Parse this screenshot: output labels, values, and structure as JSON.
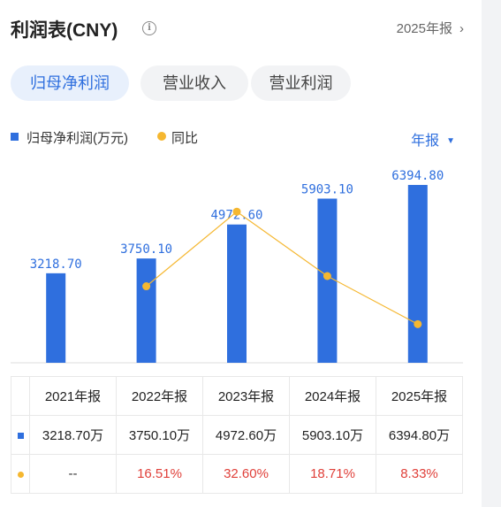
{
  "header": {
    "title": "利润表(CNY)",
    "info_glyph": "i",
    "period": "2025年报",
    "period_chevron": "›"
  },
  "tabs": [
    {
      "label": "归母净利润",
      "active": true
    },
    {
      "label": "营业收入",
      "active": false
    },
    {
      "label": "营业利润",
      "active": false
    }
  ],
  "legend": {
    "bar_label": "归母净利润(万元)",
    "line_label": "同比"
  },
  "period_select": {
    "label": "年报",
    "arrow": "▼"
  },
  "colors": {
    "bar": "#2f6fde",
    "line": "#f5b730",
    "positive": "#e0403a"
  },
  "chart_data": {
    "type": "bar",
    "categories": [
      "2021年报",
      "2022年报",
      "2023年报",
      "2024年报",
      "2025年报"
    ],
    "series": [
      {
        "name": "归母净利润(万元)",
        "type": "bar",
        "values": [
          3218.7,
          3750.1,
          4972.6,
          5903.1,
          6394.8
        ]
      },
      {
        "name": "同比",
        "type": "line",
        "values": [
          null,
          16.51,
          32.6,
          18.71,
          8.33
        ]
      }
    ],
    "bar_labels": [
      "3218.70",
      "3750.10",
      "4972.60",
      "5903.10",
      "6394.80"
    ],
    "ylim": [
      0,
      7000
    ],
    "line_ylim": [
      0,
      42
    ]
  },
  "table": {
    "headers": [
      "2021年报",
      "2022年报",
      "2023年报",
      "2024年报",
      "2025年报"
    ],
    "values_row": [
      "3218.70万",
      "3750.10万",
      "4972.60万",
      "5903.10万",
      "6394.80万"
    ],
    "yoy_row": [
      "--",
      "16.51%",
      "32.60%",
      "18.71%",
      "8.33%"
    ]
  }
}
